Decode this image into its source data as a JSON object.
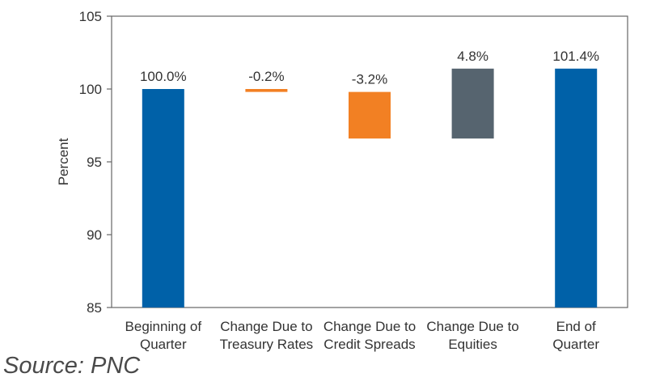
{
  "source_text": "Source: PNC",
  "chart_data": {
    "type": "bar",
    "subtype": "waterfall",
    "title": "",
    "xlabel": "",
    "ylabel": "Percent",
    "ylim": [
      85,
      105
    ],
    "yticks": [
      85,
      90,
      95,
      100,
      105
    ],
    "grid": false,
    "legend": "none",
    "categories": [
      [
        "Beginning of",
        "Quarter"
      ],
      [
        "Change Due to",
        "Treasury Rates"
      ],
      [
        "Change Due to",
        "Credit Spreads"
      ],
      [
        "Change Due to",
        "Equities"
      ],
      [
        "End of",
        "Quarter"
      ]
    ],
    "bars": [
      {
        "start": 85.0,
        "end": 100.0,
        "label": "100.0%",
        "color": "#0061a8"
      },
      {
        "start": 100.0,
        "end": 99.8,
        "label": "-0.2%",
        "color": "#f28023"
      },
      {
        "start": 99.8,
        "end": 96.6,
        "label": "-3.2%",
        "color": "#f28023"
      },
      {
        "start": 96.6,
        "end": 101.4,
        "label": "4.8%",
        "color": "#56646f"
      },
      {
        "start": 85.0,
        "end": 101.4,
        "label": "101.4%",
        "color": "#0061a8"
      }
    ]
  }
}
